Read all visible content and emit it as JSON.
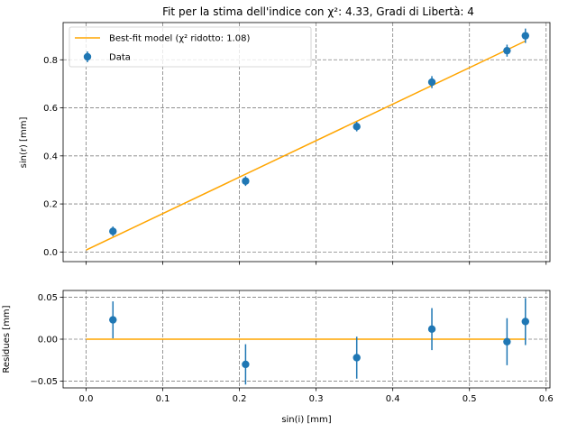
{
  "chart_data": [
    {
      "type": "scatter",
      "title": "Fit per la stima dell'indice con χ²: 4.33, Gradi di Libertà: 4",
      "ylabel": "sin(r) [mm]",
      "xlabel": "",
      "xlim": [
        -0.03,
        0.605
      ],
      "ylim": [
        -0.04,
        0.955
      ],
      "x_ticks": [
        0.0,
        0.1,
        0.2,
        0.3,
        0.4,
        0.5,
        0.6
      ],
      "y_ticks": [
        0.0,
        0.2,
        0.4,
        0.6,
        0.8
      ],
      "y_tick_labels": [
        "0.0",
        "0.2",
        "0.4",
        "0.6",
        "0.8"
      ],
      "grid": true,
      "legend_position": "top-left",
      "series": [
        {
          "name": "Best-fit model (χ² ridotto: 1.08)",
          "kind": "line",
          "color": "#ffa500",
          "x": [
            0.0,
            0.573
          ],
          "y": [
            0.008,
            0.878
          ]
        },
        {
          "name": "Data",
          "kind": "errorbar",
          "color": "#1f77b4",
          "x": [
            0.035,
            0.208,
            0.353,
            0.451,
            0.549,
            0.573
          ],
          "y": [
            0.086,
            0.295,
            0.522,
            0.707,
            0.838,
            0.9
          ],
          "yerr": [
            0.02,
            0.02,
            0.02,
            0.025,
            0.025,
            0.03
          ]
        }
      ]
    },
    {
      "type": "scatter",
      "title": "",
      "ylabel": "Residues [mm]",
      "xlabel": "sin(i) [mm]",
      "xlim": [
        -0.03,
        0.605
      ],
      "ylim": [
        -0.058,
        0.058
      ],
      "x_ticks": [
        0.0,
        0.1,
        0.2,
        0.3,
        0.4,
        0.5,
        0.6
      ],
      "x_tick_labels": [
        "0.0",
        "0.1",
        "0.2",
        "0.3",
        "0.4",
        "0.5",
        "0.6"
      ],
      "y_ticks": [
        -0.05,
        0.0,
        0.05
      ],
      "y_tick_labels": [
        "−0.05",
        "0.00",
        "0.05"
      ],
      "grid": true,
      "series": [
        {
          "kind": "line",
          "color": "#ffa500",
          "x": [
            0.0,
            0.573
          ],
          "y": [
            0.0,
            0.0
          ]
        },
        {
          "kind": "errorbar",
          "color": "#1f77b4",
          "x": [
            0.035,
            0.208,
            0.353,
            0.451,
            0.549,
            0.573
          ],
          "y": [
            0.023,
            -0.03,
            -0.022,
            0.012,
            -0.003,
            0.021
          ],
          "yerr": [
            0.022,
            0.024,
            0.025,
            0.025,
            0.028,
            0.028
          ]
        }
      ]
    }
  ]
}
